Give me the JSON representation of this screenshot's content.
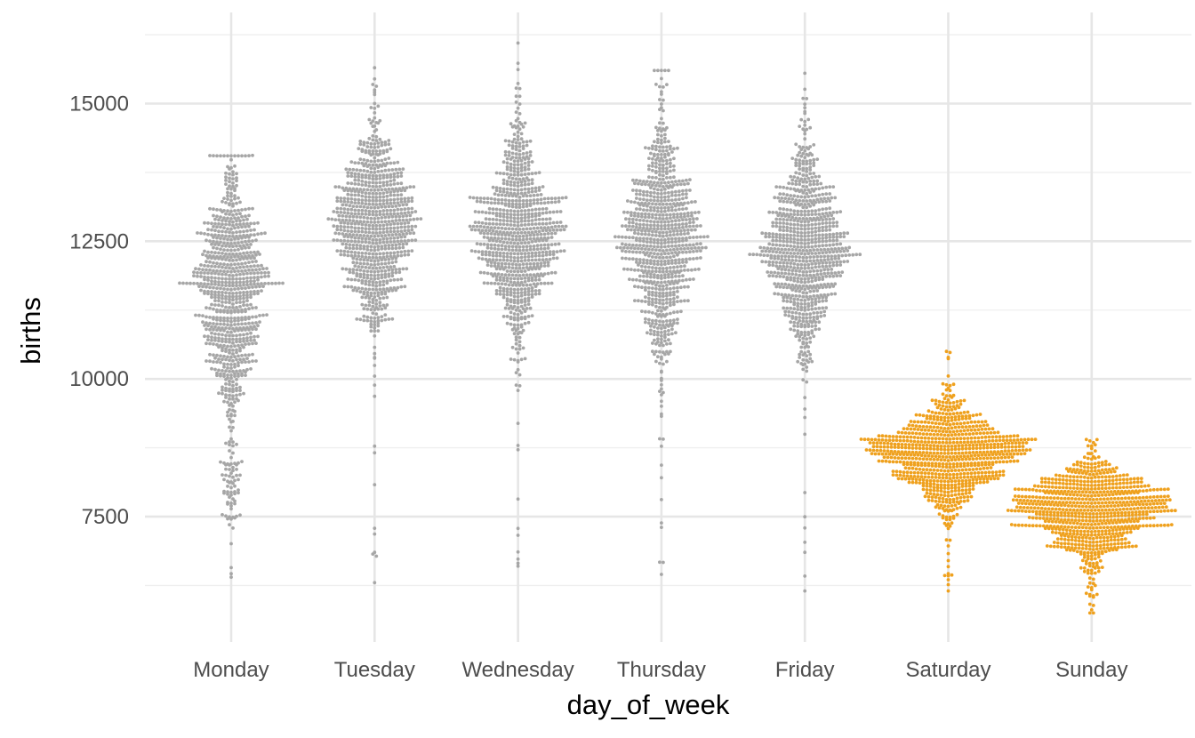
{
  "chart_data": {
    "type": "beeswarm",
    "title": "",
    "xlabel": "day_of_week",
    "ylabel": "births",
    "categories": [
      "Monday",
      "Tuesday",
      "Wednesday",
      "Thursday",
      "Friday",
      "Saturday",
      "Sunday"
    ],
    "yticks": [
      7500,
      10000,
      12500,
      15000
    ],
    "yticks_labels": [
      "7500",
      "10000",
      "12500",
      "15000"
    ],
    "ylim": [
      5500,
      16500
    ],
    "grid": true,
    "legend": "none",
    "colors": {
      "weekday": "#a6a6a6",
      "weekend": "#efa11e"
    },
    "series": [
      {
        "category": "Monday",
        "highlight": false,
        "median": 11700,
        "q1": 10800,
        "q3": 12400,
        "min": 6400,
        "max": 14050,
        "low_cluster": [
          7300,
          8500
        ]
      },
      {
        "category": "Tuesday",
        "highlight": false,
        "median": 12850,
        "q1": 12200,
        "q3": 13400,
        "min": 6300,
        "max": 15650
      },
      {
        "category": "Wednesday",
        "highlight": false,
        "median": 12550,
        "q1": 11900,
        "q3": 13200,
        "min": 6600,
        "max": 16100
      },
      {
        "category": "Thursday",
        "highlight": false,
        "median": 12500,
        "q1": 11800,
        "q3": 13200,
        "min": 6450,
        "max": 15600
      },
      {
        "category": "Friday",
        "highlight": false,
        "median": 12400,
        "q1": 11800,
        "q3": 13000,
        "min": 6150,
        "max": 15550
      },
      {
        "category": "Saturday",
        "highlight": true,
        "median": 8650,
        "q1": 8300,
        "q3": 8950,
        "min": 6150,
        "max": 10500
      },
      {
        "category": "Sunday",
        "highlight": true,
        "median": 7650,
        "q1": 7300,
        "q3": 7950,
        "min": 5750,
        "max": 8900
      }
    ]
  }
}
